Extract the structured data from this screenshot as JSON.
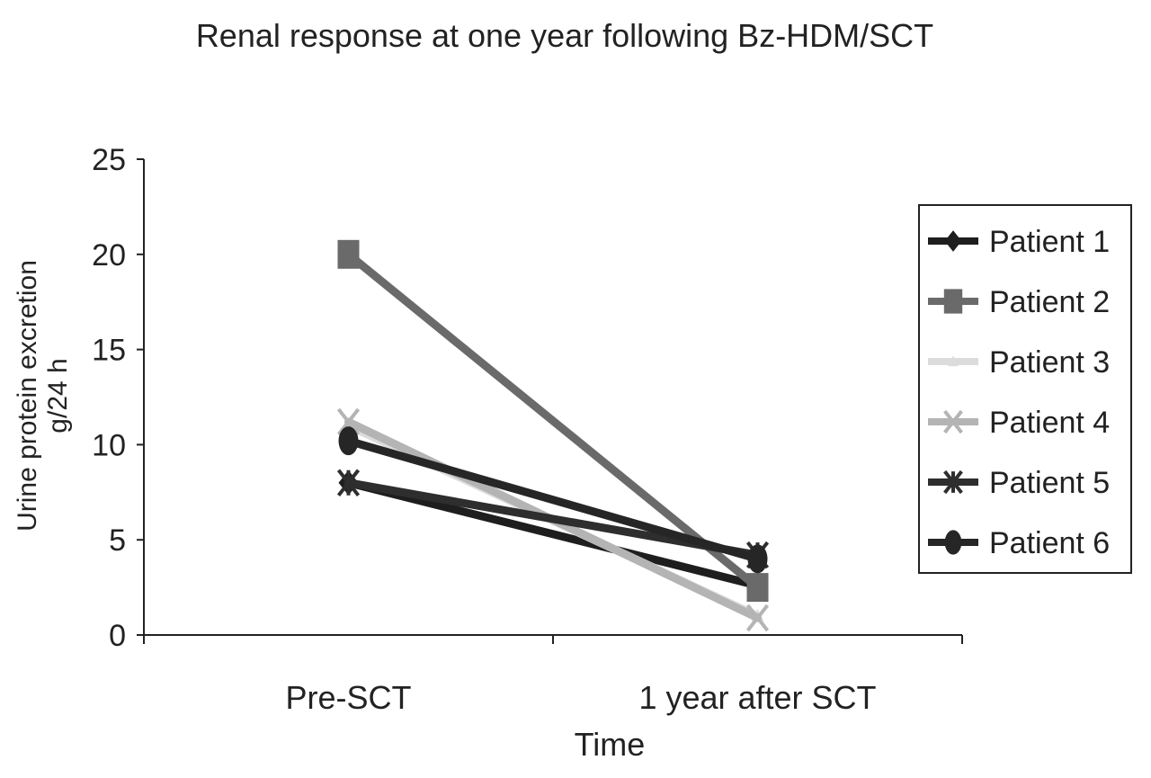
{
  "chart_data": {
    "type": "line",
    "title": "Renal response at one year following Bz-HDM/SCT",
    "xlabel": "Time",
    "ylabel_line1": "Urine protein excretion",
    "ylabel_line2": "g/24 h",
    "categories": [
      "Pre-SCT",
      "1 year after SCT"
    ],
    "ylim": [
      0,
      25
    ],
    "yticks": [
      "0",
      "5",
      "10",
      "15",
      "20",
      "25"
    ],
    "grid": false,
    "legend_position": "right",
    "series": [
      {
        "name": "Patient 1",
        "values": [
          8.0,
          2.6
        ],
        "color": "#1e1e1e",
        "marker": "diamond"
      },
      {
        "name": "Patient 2",
        "values": [
          20.0,
          2.5
        ],
        "color": "#6a6a6a",
        "marker": "square"
      },
      {
        "name": "Patient 3",
        "values": [
          11.0,
          1.0
        ],
        "color": "#dcdcdc",
        "marker": "triangle"
      },
      {
        "name": "Patient 4",
        "values": [
          11.2,
          0.9
        ],
        "color": "#b4b4b4",
        "marker": "x"
      },
      {
        "name": "Patient 5",
        "values": [
          8.0,
          4.2
        ],
        "color": "#2e2e2e",
        "marker": "star"
      },
      {
        "name": "Patient 6",
        "values": [
          10.2,
          4.0
        ],
        "color": "#262626",
        "marker": "circle"
      }
    ]
  }
}
